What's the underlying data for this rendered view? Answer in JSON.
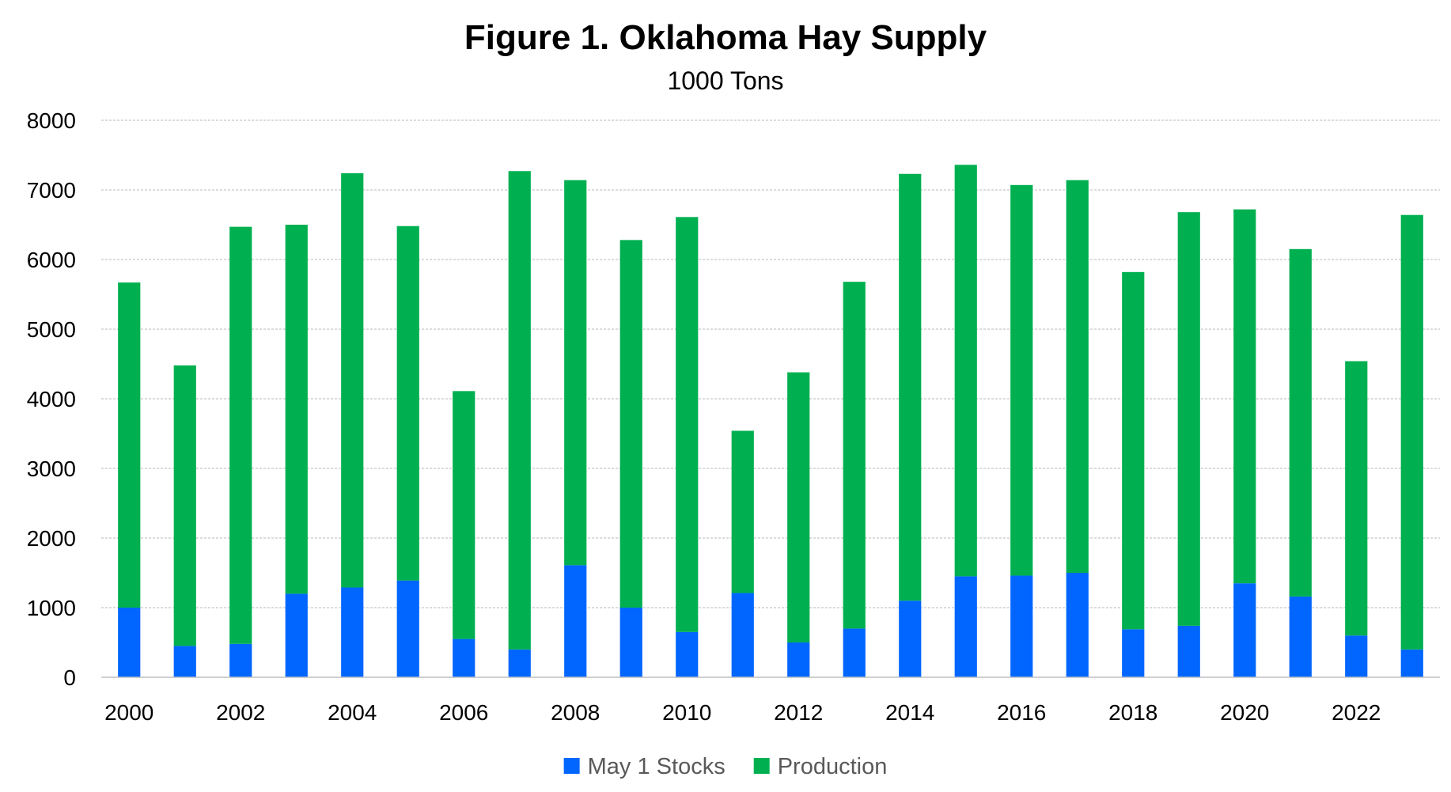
{
  "chart_data": {
    "type": "bar",
    "stacked": true,
    "title": "Figure 1. Oklahoma Hay Supply",
    "subtitle": "1000 Tons",
    "xlabel": "",
    "ylabel": "",
    "ylim": [
      0,
      8000
    ],
    "yticks": [
      "0",
      "1000",
      "2000",
      "3000",
      "4000",
      "5000",
      "6000",
      "7000",
      "8000"
    ],
    "ytick_values": [
      0,
      1000,
      2000,
      3000,
      4000,
      5000,
      6000,
      7000,
      8000
    ],
    "categories": [
      "2000",
      "2001",
      "2002",
      "2003",
      "2004",
      "2005",
      "2006",
      "2007",
      "2008",
      "2009",
      "2010",
      "2011",
      "2012",
      "2013",
      "2014",
      "2015",
      "2016",
      "2017",
      "2018",
      "2019",
      "2020",
      "2021",
      "2022",
      "2023"
    ],
    "xtick_labels": [
      "2000",
      "",
      "2002",
      "",
      "2004",
      "",
      "2006",
      "",
      "2008",
      "",
      "2010",
      "",
      "2012",
      "",
      "2014",
      "",
      "2016",
      "",
      "2018",
      "",
      "2020",
      "",
      "2022",
      ""
    ],
    "grid": true,
    "legend_position": "bottom",
    "series": [
      {
        "name": "May 1 Stocks",
        "color": "#0066ff",
        "values": [
          1000,
          450,
          480,
          1200,
          1290,
          1390,
          550,
          400,
          1610,
          1000,
          650,
          1210,
          500,
          700,
          1100,
          1450,
          1460,
          1500,
          690,
          740,
          1350,
          1160,
          600,
          400
        ]
      },
      {
        "name": "Production",
        "color": "#00b050",
        "values": [
          4670,
          4030,
          5990,
          5300,
          5950,
          5090,
          3560,
          6870,
          5530,
          5280,
          5960,
          2330,
          3880,
          4980,
          6130,
          5910,
          5610,
          5640,
          5130,
          5940,
          5370,
          4990,
          3940,
          6240
        ]
      }
    ]
  }
}
